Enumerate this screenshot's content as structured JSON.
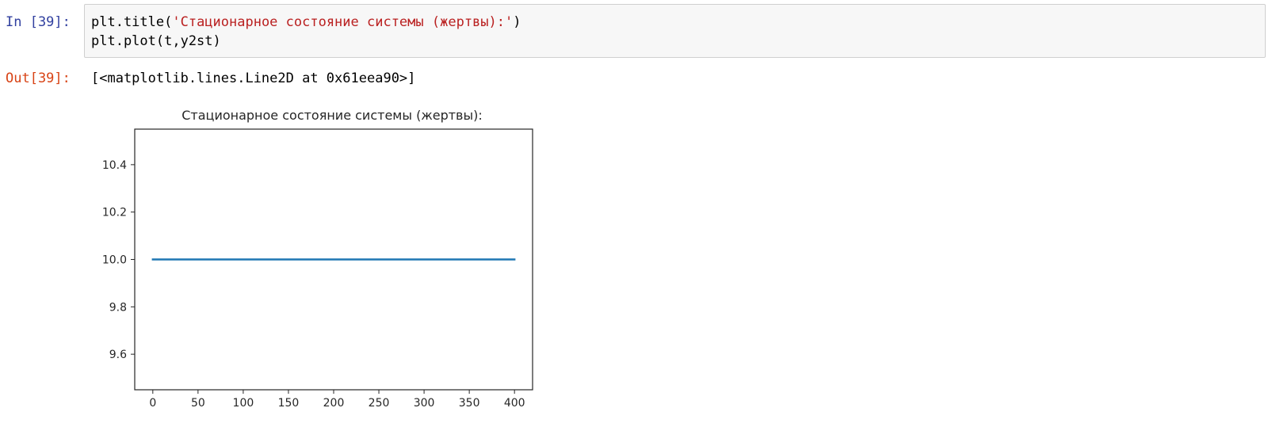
{
  "cell": {
    "in_prompt": "In [39]:",
    "out_prompt": "Out[39]:",
    "code": {
      "line1": {
        "prefix": "plt.title(",
        "string": "'Стационарное состояние системы (жертвы):'",
        "suffix": ")"
      },
      "line2": "plt.plot(t,y2st)"
    },
    "output_text": "[<matplotlib.lines.Line2D at 0x61eea90>]"
  },
  "colors": {
    "in_prompt": "#303f9f",
    "out_prompt": "#d84315",
    "string": "#ba2121",
    "line": "#1f77b4"
  },
  "chart_data": {
    "type": "line",
    "title": "Стационарное состояние системы (жертвы):",
    "xlabel": "",
    "ylabel": "",
    "x": [
      0,
      400
    ],
    "series": [
      {
        "values": [
          10.0,
          10.0
        ]
      }
    ],
    "xlim": [
      -20,
      420
    ],
    "ylim": [
      9.45,
      10.55
    ],
    "xticks": [
      0,
      50,
      100,
      150,
      200,
      250,
      300,
      350,
      400
    ],
    "xtick_labels": [
      "0",
      "50",
      "100",
      "150",
      "200",
      "250",
      "300",
      "350",
      "400"
    ],
    "yticks": [
      9.6,
      9.8,
      10.0,
      10.2,
      10.4
    ],
    "ytick_labels": [
      "9.6",
      "9.8",
      "10.0",
      "10.2",
      "10.4"
    ],
    "grid": false
  }
}
